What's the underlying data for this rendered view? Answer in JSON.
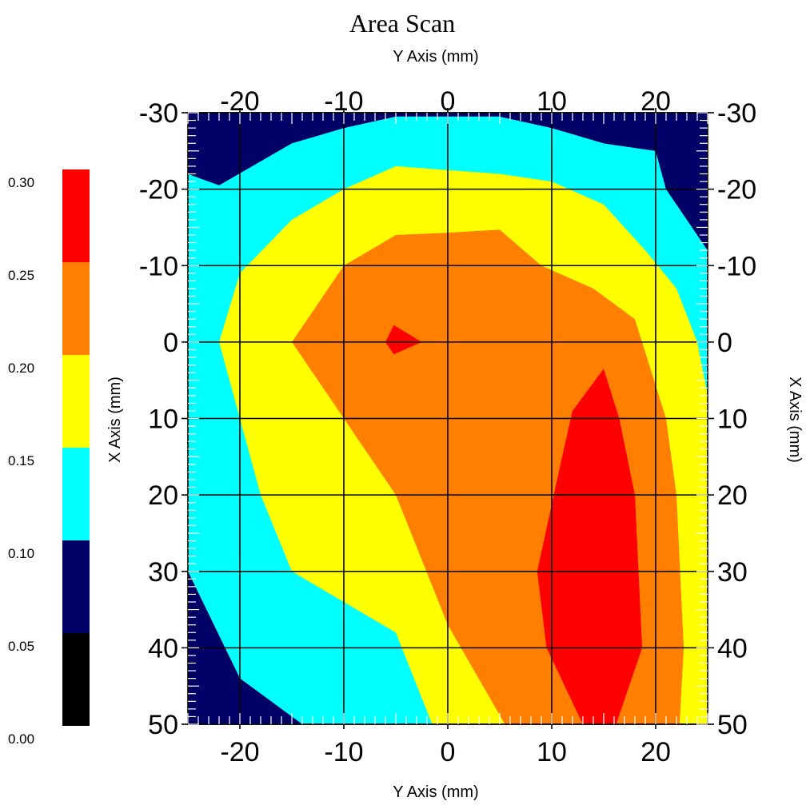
{
  "chart_data": {
    "type": "heatmap",
    "title": "Area Scan",
    "xlabel": "Y Axis (mm)",
    "ylabel": "X Axis (mm)",
    "x_range": [
      -25,
      25
    ],
    "y_range": [
      -30,
      50
    ],
    "x_ticks": [
      "-20",
      "-10",
      "0",
      "10",
      "20"
    ],
    "y_ticks": [
      "-30",
      "-20",
      "-10",
      "0",
      "10",
      "20",
      "30",
      "40",
      "50"
    ],
    "x_tick_values": [
      -20,
      -10,
      0,
      10,
      20
    ],
    "y_tick_values": [
      -30,
      -20,
      -10,
      0,
      10,
      20,
      30,
      40,
      50
    ],
    "grid": true,
    "colorbar": {
      "ticks": [
        "0.00",
        "0.05",
        "0.10",
        "0.15",
        "0.20",
        "0.25",
        "0.30"
      ],
      "levels": [
        0.0,
        0.05,
        0.1,
        0.15,
        0.2,
        0.25,
        0.3
      ],
      "colors": [
        "#000000",
        "#000066",
        "#00ffff",
        "#ffff00",
        "#ff8000",
        "#ff0000"
      ]
    },
    "contours": [
      {
        "level": 0.1,
        "color": "#00ffff",
        "polygon": [
          [
            -25,
            -22
          ],
          [
            -22,
            -20.5
          ],
          [
            -15,
            -26
          ],
          [
            -10,
            -28
          ],
          [
            -5,
            -29.5
          ],
          [
            5,
            -29.5
          ],
          [
            10,
            -28
          ],
          [
            15,
            -26
          ],
          [
            20,
            -25
          ],
          [
            21,
            -20
          ],
          [
            23,
            -16
          ],
          [
            25,
            -12
          ],
          [
            25,
            50
          ],
          [
            -14,
            50
          ],
          [
            -20,
            44
          ],
          [
            -25,
            30
          ]
        ]
      },
      {
        "level": 0.15,
        "color": "#ffff00",
        "polygon": [
          [
            -20,
            -9
          ],
          [
            -15,
            -16
          ],
          [
            -10,
            -20
          ],
          [
            -5,
            -23
          ],
          [
            0,
            -22.5
          ],
          [
            5,
            -22
          ],
          [
            10,
            -21
          ],
          [
            15,
            -18
          ],
          [
            19,
            -12
          ],
          [
            22,
            -7
          ],
          [
            24,
            0
          ],
          [
            25,
            7
          ],
          [
            25,
            50
          ],
          [
            -1.5,
            50
          ],
          [
            -5,
            38
          ],
          [
            -15,
            30
          ],
          [
            -18,
            20
          ],
          [
            -20,
            10
          ],
          [
            -22,
            0
          ]
        ]
      },
      {
        "level": 0.2,
        "color": "#ff8000",
        "polygon": [
          [
            -10,
            -10
          ],
          [
            -5,
            -14
          ],
          [
            0,
            -14.3
          ],
          [
            5,
            -14.7
          ],
          [
            9,
            -10
          ],
          [
            14,
            -7
          ],
          [
            18,
            -3
          ],
          [
            21,
            10
          ],
          [
            22,
            20
          ],
          [
            22.7,
            40
          ],
          [
            22.3,
            50
          ],
          [
            5.5,
            50
          ],
          [
            0,
            37
          ],
          [
            -5,
            20
          ],
          [
            -15,
            0
          ]
        ]
      },
      {
        "level": 0.25,
        "color": "#ff0000",
        "polygon": [
          [
            -6,
            0
          ],
          [
            -5.2,
            -2.2
          ],
          [
            -2.5,
            0
          ],
          [
            -5.2,
            1.6
          ]
        ]
      },
      {
        "level": 0.25,
        "color": "#ff0000",
        "polygon": [
          [
            15,
            3.5
          ],
          [
            16.5,
            10
          ],
          [
            18,
            20
          ],
          [
            18.7,
            40
          ],
          [
            16.2,
            50
          ],
          [
            13,
            50
          ],
          [
            9.5,
            40
          ],
          [
            8.6,
            30
          ],
          [
            11,
            15
          ],
          [
            12,
            9
          ]
        ]
      }
    ],
    "dark_corners": [
      {
        "color": "#000066",
        "polygon": [
          [
            -25,
            -30
          ],
          [
            -25,
            -22
          ],
          [
            -22,
            -20.5
          ],
          [
            -15,
            -26
          ],
          [
            -10,
            -28
          ],
          [
            -5,
            -29.5
          ],
          [
            -5,
            -30
          ]
        ]
      },
      {
        "color": "#000066",
        "polygon": [
          [
            5,
            -30
          ],
          [
            5,
            -29.5
          ],
          [
            10,
            -28
          ],
          [
            15,
            -26
          ],
          [
            20,
            -25
          ],
          [
            21,
            -20
          ],
          [
            23,
            -16
          ],
          [
            25,
            -12
          ],
          [
            25,
            -30
          ]
        ]
      },
      {
        "color": "#000066",
        "polygon": [
          [
            -25,
            30
          ],
          [
            -20,
            44
          ],
          [
            -14,
            50
          ],
          [
            -25,
            50
          ]
        ]
      }
    ]
  }
}
